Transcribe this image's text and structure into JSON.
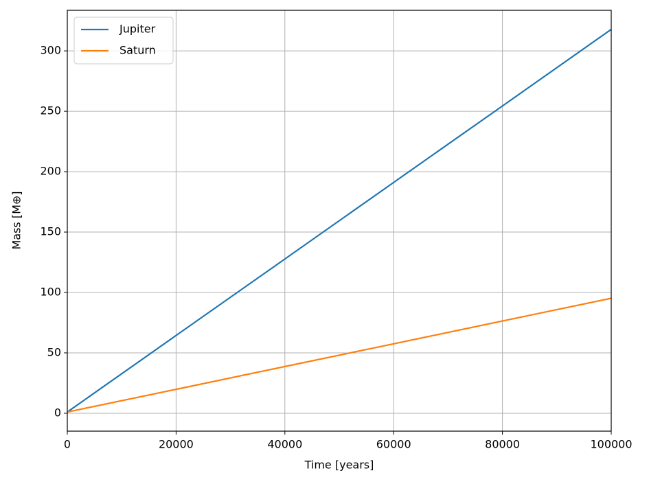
{
  "chart_data": {
    "type": "line",
    "xlabel": "Time [years]",
    "ylabel": "Mass [M⊕]",
    "x": [
      0,
      20000,
      40000,
      60000,
      80000,
      100000
    ],
    "series": [
      {
        "name": "Jupiter",
        "color": "#1f77b4",
        "values": [
          1,
          64.4,
          127.7,
          191.1,
          254.4,
          317.8
        ]
      },
      {
        "name": "Saturn",
        "color": "#ff7f0e",
        "values": [
          1,
          19.8,
          38.7,
          57.5,
          76.4,
          95.2
        ]
      }
    ],
    "xlim": [
      0,
      100000
    ],
    "ylim": [
      -14.8,
      333.6
    ],
    "xticks": [
      0,
      20000,
      40000,
      60000,
      80000,
      100000
    ],
    "yticks": [
      0,
      50,
      100,
      150,
      200,
      250,
      300
    ],
    "grid": true,
    "legend": "upper left"
  }
}
